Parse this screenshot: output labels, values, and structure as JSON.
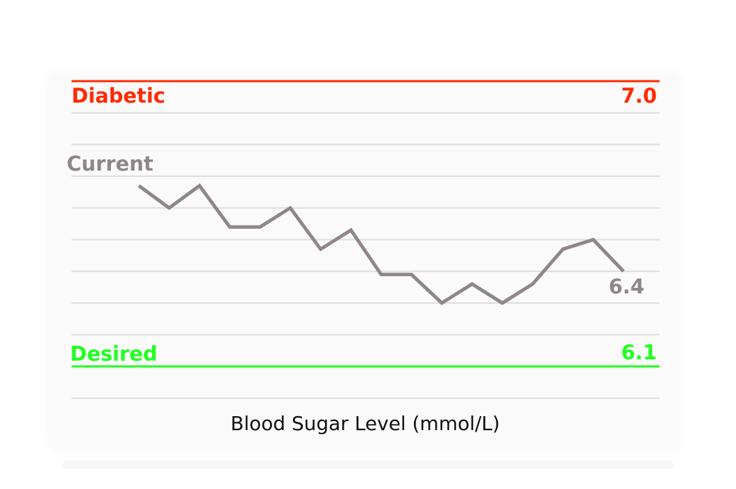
{
  "colors": {
    "diabetic": "#ff2a00",
    "desired": "#1fff1f",
    "series": "#8f8787",
    "grid": "#dddddd",
    "text": "#111111"
  },
  "chart_data": {
    "type": "line",
    "xlabel": "Blood Sugar Level (mmol/L)",
    "ylim": [
      6.0,
      7.0
    ],
    "grid": true,
    "y": [
      6.67,
      6.6,
      6.67,
      6.54,
      6.54,
      6.6,
      6.47,
      6.53,
      6.39,
      6.39,
      6.3,
      6.36,
      6.3,
      6.36,
      6.47,
      6.5,
      6.4
    ],
    "thresholds": [
      {
        "name": "Diabetic",
        "value": 7.0,
        "value_label": "7.0"
      },
      {
        "name": "Desired",
        "value": 6.1,
        "value_label": "6.1"
      }
    ],
    "annotations": {
      "series_label": "Current",
      "end_value_label": "6.4"
    }
  }
}
